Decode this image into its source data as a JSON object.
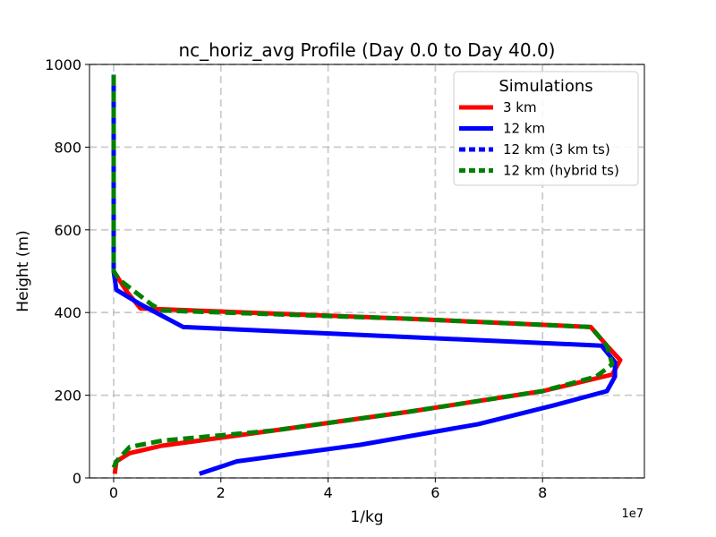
{
  "chart_data": {
    "type": "line",
    "title": "nc_horiz_avg Profile (Day 0.0 to Day 40.0)",
    "xlabel": "1/kg",
    "ylabel": "Height (m)",
    "x_offset_label": "1e7",
    "x_scale": 10000000,
    "xlim": [
      -0.45,
      9.9
    ],
    "ylim": [
      0,
      1000
    ],
    "xticks": [
      0,
      2,
      4,
      6,
      8
    ],
    "xtick_labels": [
      "0",
      "2",
      "4",
      "6",
      "8"
    ],
    "yticks": [
      0,
      200,
      400,
      600,
      800,
      1000
    ],
    "ytick_labels": [
      "0",
      "200",
      "400",
      "600",
      "800",
      "1000"
    ],
    "grid": true,
    "legend": {
      "title": "Simulations",
      "position": "top-right",
      "entries": [
        "3 km",
        "12 km",
        "12 km (3 km ts)",
        "12 km (hybrid ts)"
      ]
    },
    "series": [
      {
        "name": "3 km",
        "color": "#ff0000",
        "style": "solid",
        "points": [
          [
            0.02,
            10
          ],
          [
            0.05,
            40
          ],
          [
            0.3,
            60
          ],
          [
            0.9,
            78
          ],
          [
            3.0,
            115
          ],
          [
            5.5,
            160
          ],
          [
            8.0,
            210
          ],
          [
            9.3,
            250
          ],
          [
            9.45,
            285
          ],
          [
            9.2,
            320
          ],
          [
            8.9,
            365
          ],
          [
            5.5,
            385
          ],
          [
            0.5,
            410
          ],
          [
            0.25,
            450
          ],
          [
            0.0,
            500
          ],
          [
            0.0,
            550
          ],
          [
            0.0,
            600
          ],
          [
            0.0,
            700
          ],
          [
            0.0,
            800
          ],
          [
            0.0,
            900
          ],
          [
            0.0,
            975
          ]
        ]
      },
      {
        "name": "12 km",
        "color": "#0000ff",
        "style": "solid",
        "points": [
          [
            1.6,
            10
          ],
          [
            2.3,
            40
          ],
          [
            4.6,
            80
          ],
          [
            6.8,
            130
          ],
          [
            8.2,
            175
          ],
          [
            9.2,
            210
          ],
          [
            9.35,
            245
          ],
          [
            9.35,
            280
          ],
          [
            9.1,
            320
          ],
          [
            1.3,
            365
          ],
          [
            0.5,
            420
          ],
          [
            0.05,
            455
          ],
          [
            0.0,
            500
          ],
          [
            0.0,
            600
          ],
          [
            0.0,
            700
          ],
          [
            0.0,
            800
          ],
          [
            0.0,
            900
          ],
          [
            0.0,
            975
          ]
        ]
      },
      {
        "name": "12 km (3 km ts)",
        "color": "#0000ff",
        "style": "dashed",
        "points": [
          [
            0.0,
            500
          ],
          [
            0.0,
            600
          ],
          [
            0.0,
            700
          ],
          [
            0.0,
            800
          ],
          [
            0.0,
            900
          ],
          [
            0.0,
            975
          ]
        ]
      },
      {
        "name": "12 km (hybrid ts)",
        "color": "#008000",
        "style": "dashed",
        "points": [
          [
            0.0,
            25
          ],
          [
            0.05,
            40
          ],
          [
            0.3,
            75
          ],
          [
            0.9,
            90
          ],
          [
            3.0,
            115
          ],
          [
            5.5,
            160
          ],
          [
            8.0,
            210
          ],
          [
            9.0,
            245
          ],
          [
            9.3,
            275
          ],
          [
            9.2,
            320
          ],
          [
            8.9,
            365
          ],
          [
            5.5,
            385
          ],
          [
            0.9,
            405
          ],
          [
            0.7,
            420
          ],
          [
            0.1,
            480
          ],
          [
            0.0,
            500
          ],
          [
            0.0,
            600
          ],
          [
            0.0,
            700
          ],
          [
            0.0,
            800
          ],
          [
            0.0,
            900
          ],
          [
            0.0,
            985
          ]
        ]
      }
    ]
  }
}
